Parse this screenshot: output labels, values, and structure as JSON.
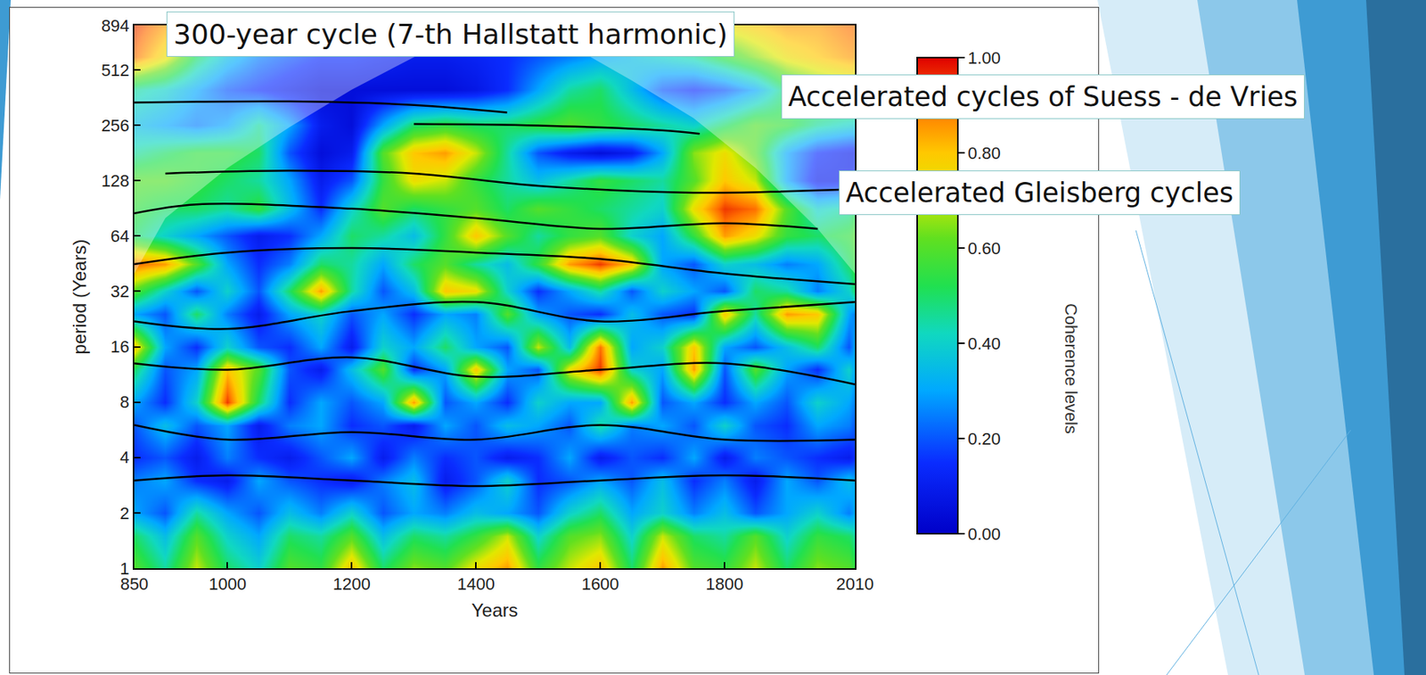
{
  "chart_data": {
    "type": "heatmap",
    "annotations": [
      "300-year cycle (7-th Hallstatt harmonic)",
      "Accelerated cycles of Suess - de Vries",
      "Accelerated Gleisberg cycles"
    ],
    "colorbar_title": "Coherence levels",
    "x_label": "Years",
    "y_label": "period (Years)",
    "log": "y",
    "xlim": [
      850,
      2010
    ],
    "xticks": [
      850,
      1000,
      1200,
      1400,
      1600,
      1800,
      2010
    ],
    "ylim": [
      1,
      894
    ],
    "yticks": [
      1,
      2,
      4,
      8,
      16,
      32,
      64,
      128,
      256,
      512,
      894
    ],
    "zlim": [
      0,
      1
    ],
    "zticks": [
      {
        "value": 0,
        "label": "0.00"
      },
      {
        "value": 0.2,
        "label": "0.20"
      },
      {
        "value": 0.4,
        "label": "0.40"
      },
      {
        "value": 0.6,
        "label": "0.60"
      },
      {
        "value": 0.8,
        "label": "0.80"
      },
      {
        "value": 1,
        "label": "1.00"
      }
    ],
    "x": [
      850,
      900,
      950,
      1000,
      1050,
      1100,
      1150,
      1200,
      1250,
      1300,
      1350,
      1400,
      1450,
      1500,
      1550,
      1600,
      1650,
      1700,
      1750,
      1800,
      1850,
      1900,
      1950,
      2000,
      2010
    ],
    "y": [
      1,
      1.5,
      2,
      3,
      4,
      6,
      8,
      12,
      16,
      24,
      32,
      45,
      64,
      90,
      128,
      181,
      256,
      400,
      600,
      894
    ],
    "z": [
      [
        0.6,
        0.45,
        0.7,
        0.5,
        0.4,
        0.6,
        0.55,
        0.8,
        0.5,
        0.65,
        0.6,
        0.75,
        0.85,
        0.55,
        0.7,
        0.8,
        0.5,
        0.85,
        0.6,
        0.55,
        0.7,
        0.5,
        0.65,
        0.6,
        0.55
      ],
      [
        0.5,
        0.35,
        0.6,
        0.4,
        0.3,
        0.5,
        0.45,
        0.6,
        0.35,
        0.5,
        0.45,
        0.55,
        0.7,
        0.4,
        0.6,
        0.65,
        0.4,
        0.7,
        0.5,
        0.45,
        0.6,
        0.4,
        0.55,
        0.5,
        0.45
      ],
      [
        0.3,
        0.2,
        0.45,
        0.3,
        0.2,
        0.35,
        0.25,
        0.4,
        0.2,
        0.3,
        0.25,
        0.35,
        0.3,
        0.2,
        0.4,
        0.5,
        0.3,
        0.4,
        0.25,
        0.35,
        0.2,
        0.3,
        0.4,
        0.25,
        0.3
      ],
      [
        0.25,
        0.3,
        0.15,
        0.1,
        0.3,
        0.2,
        0.15,
        0.1,
        0.25,
        0.35,
        0.1,
        0.2,
        0.4,
        0.15,
        0.2,
        0.3,
        0.2,
        0.35,
        0.15,
        0.25,
        0.1,
        0.3,
        0.2,
        0.35,
        0.3
      ],
      [
        0.15,
        0.2,
        0.1,
        0.25,
        0.15,
        0.1,
        0.2,
        0.3,
        0.1,
        0.25,
        0.15,
        0.2,
        0.1,
        0.15,
        0.3,
        0.1,
        0.2,
        0.15,
        0.3,
        0.1,
        0.25,
        0.2,
        0.15,
        0.1,
        0.15
      ],
      [
        0.2,
        0.35,
        0.2,
        0.3,
        0.1,
        0.25,
        0.3,
        0.15,
        0.2,
        0.1,
        0.3,
        0.2,
        0.35,
        0.3,
        0.2,
        0.45,
        0.25,
        0.3,
        0.2,
        0.4,
        0.2,
        0.15,
        0.3,
        0.25,
        0.2
      ],
      [
        0.3,
        0.15,
        0.4,
        0.95,
        0.5,
        0.15,
        0.3,
        0.2,
        0.3,
        0.85,
        0.2,
        0.3,
        0.15,
        0.4,
        0.3,
        0.3,
        0.85,
        0.2,
        0.3,
        0.15,
        0.3,
        0.2,
        0.4,
        0.3,
        0.25
      ],
      [
        0.5,
        0.2,
        0.3,
        0.8,
        0.6,
        0.2,
        0.1,
        0.35,
        0.6,
        0.15,
        0.3,
        0.8,
        0.3,
        0.2,
        0.75,
        0.95,
        0.4,
        0.3,
        0.85,
        0.2,
        0.6,
        0.3,
        0.15,
        0.4,
        0.3
      ],
      [
        0.8,
        0.3,
        0.15,
        0.4,
        0.2,
        0.15,
        0.3,
        0.1,
        0.4,
        0.3,
        0.5,
        0.3,
        0.2,
        0.7,
        0.35,
        0.9,
        0.3,
        0.4,
        0.8,
        0.3,
        0.2,
        0.35,
        0.5,
        0.2,
        0.3
      ],
      [
        0.3,
        0.2,
        0.5,
        0.25,
        0.1,
        0.3,
        0.4,
        0.2,
        0.3,
        0.15,
        0.3,
        0.25,
        0.6,
        0.3,
        0.2,
        0.15,
        0.35,
        0.2,
        0.15,
        0.8,
        0.45,
        0.85,
        0.8,
        0.3,
        0.25
      ],
      [
        0.6,
        0.4,
        0.2,
        0.4,
        0.2,
        0.5,
        0.85,
        0.45,
        0.2,
        0.35,
        0.8,
        0.75,
        0.4,
        0.15,
        0.3,
        0.45,
        0.2,
        0.4,
        0.3,
        0.2,
        0.5,
        0.45,
        0.25,
        0.4,
        0.5
      ],
      [
        0.9,
        0.85,
        0.6,
        0.3,
        0.15,
        0.25,
        0.5,
        0.45,
        0.3,
        0.5,
        0.6,
        0.45,
        0.35,
        0.55,
        0.85,
        0.95,
        0.8,
        0.3,
        0.2,
        0.4,
        0.35,
        0.25,
        0.3,
        0.5,
        0.55
      ],
      [
        0.5,
        0.4,
        0.3,
        0.2,
        0.1,
        0.15,
        0.3,
        0.5,
        0.45,
        0.35,
        0.55,
        0.8,
        0.6,
        0.45,
        0.55,
        0.6,
        0.4,
        0.3,
        0.55,
        0.85,
        0.75,
        0.55,
        0.5,
        0.55,
        0.6
      ],
      [
        0.55,
        0.5,
        0.5,
        0.45,
        0.55,
        0.35,
        0.15,
        0.4,
        0.6,
        0.5,
        0.55,
        0.6,
        0.5,
        0.6,
        0.55,
        0.5,
        0.45,
        0.4,
        0.75,
        0.95,
        0.9,
        0.6,
        0.4,
        0.45,
        0.5
      ],
      [
        0.6,
        0.6,
        0.55,
        0.5,
        0.45,
        0.3,
        0.1,
        0.2,
        0.55,
        0.75,
        0.7,
        0.55,
        0.45,
        0.35,
        0.45,
        0.55,
        0.5,
        0.45,
        0.6,
        0.8,
        0.7,
        0.3,
        0.1,
        0.1,
        0.15
      ],
      [
        0.45,
        0.5,
        0.55,
        0.55,
        0.5,
        0.2,
        0.05,
        0.1,
        0.6,
        0.8,
        0.85,
        0.7,
        0.45,
        0.2,
        0.1,
        0.05,
        0.1,
        0.3,
        0.65,
        0.75,
        0.6,
        0.3,
        0.15,
        0.1,
        0.1
      ],
      [
        0.35,
        0.3,
        0.25,
        0.3,
        0.45,
        0.3,
        0.1,
        0.05,
        0.3,
        0.5,
        0.55,
        0.5,
        0.5,
        0.55,
        0.6,
        0.55,
        0.5,
        0.45,
        0.4,
        0.5,
        0.6,
        0.55,
        0.45,
        0.4,
        0.4
      ],
      [
        0.45,
        0.4,
        0.3,
        0.2,
        0.15,
        0.1,
        0.05,
        0.05,
        0.05,
        0.05,
        0.05,
        0.08,
        0.15,
        0.3,
        0.45,
        0.5,
        0.35,
        0.2,
        0.15,
        0.2,
        0.3,
        0.5,
        0.6,
        0.65,
        0.65
      ],
      [
        0.9,
        0.75,
        0.5,
        0.35,
        0.25,
        0.2,
        0.15,
        0.15,
        0.12,
        0.1,
        0.1,
        0.12,
        0.15,
        0.2,
        0.25,
        0.3,
        0.35,
        0.4,
        0.45,
        0.55,
        0.65,
        0.75,
        0.8,
        0.85,
        0.85
      ],
      [
        0.95,
        0.85,
        0.7,
        0.6,
        0.55,
        0.5,
        0.5,
        0.5,
        0.5,
        0.5,
        0.5,
        0.55,
        0.6,
        0.6,
        0.6,
        0.6,
        0.65,
        0.65,
        0.7,
        0.75,
        0.8,
        0.85,
        0.85,
        0.9,
        0.9
      ]
    ],
    "ridges": [
      {
        "x": [
          850,
          1100,
          1300,
          1450
        ],
        "y": [
          340,
          345,
          330,
          300
        ]
      },
      {
        "x": [
          1300,
          1500,
          1700,
          1760
        ],
        "y": [
          260,
          255,
          240,
          230
        ]
      },
      {
        "x": [
          900,
          1100,
          1300,
          1500,
          1750,
          2010
        ],
        "y": [
          140,
          145,
          140,
          120,
          110,
          115
        ]
      },
      {
        "x": [
          850,
          950,
          1200,
          1400,
          1600,
          1800,
          1950
        ],
        "y": [
          85,
          95,
          90,
          80,
          70,
          75,
          70
        ]
      },
      {
        "x": [
          850,
          1000,
          1200,
          1400,
          1600,
          1800,
          2010
        ],
        "y": [
          45,
          52,
          55,
          52,
          48,
          40,
          35
        ]
      },
      {
        "x": [
          850,
          1000,
          1200,
          1400,
          1600,
          1800,
          2010
        ],
        "y": [
          22,
          20,
          25,
          28,
          22,
          25,
          28
        ]
      },
      {
        "x": [
          850,
          1000,
          1200,
          1400,
          1600,
          1800,
          2010
        ],
        "y": [
          13,
          12,
          14,
          11,
          12,
          13,
          10
        ]
      },
      {
        "x": [
          850,
          1000,
          1200,
          1400,
          1600,
          1800,
          2010
        ],
        "y": [
          6,
          5,
          5.5,
          5,
          6,
          5,
          5
        ]
      },
      {
        "x": [
          850,
          1000,
          1200,
          1400,
          1600,
          1800,
          2010
        ],
        "y": [
          3,
          3.2,
          3,
          2.8,
          3,
          3.2,
          3
        ]
      }
    ],
    "cone_of_influence": {
      "x": [
        850,
        900,
        1000,
        1100,
        1200,
        1300,
        1430,
        1550,
        1650,
        1750,
        1850,
        1950,
        2010
      ],
      "y": [
        40,
        80,
        150,
        250,
        400,
        600,
        894,
        700,
        450,
        280,
        150,
        70,
        40
      ]
    }
  }
}
